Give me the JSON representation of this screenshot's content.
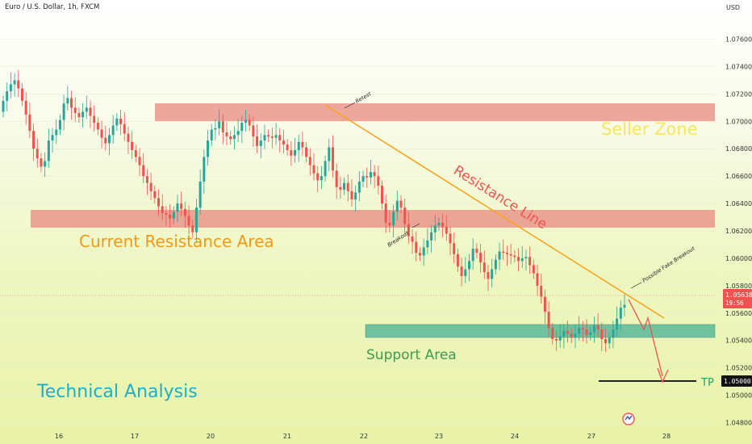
{
  "header": {
    "symbol": "Euro / U.S. Dollar, 1h, FXCM",
    "currency": "USD"
  },
  "chart_data": {
    "type": "candlestick",
    "x_ticks": [
      "16",
      "17",
      "20",
      "21",
      "22",
      "23",
      "24",
      "27",
      "28"
    ],
    "y_ticks": [
      "1.07600",
      "1.07400",
      "1.07200",
      "1.07000",
      "1.06800",
      "1.06600",
      "1.06400",
      "1.06200",
      "1.06000",
      "1.05800",
      "1.05600",
      "1.05400",
      "1.05200",
      "1.05000",
      "1.04800"
    ],
    "ylim": [
      1.0475,
      1.0778
    ],
    "current_price": {
      "value": "1.05638",
      "countdown": "19:56",
      "level": 1.05638
    },
    "tp_price": {
      "value": "1.05000",
      "level": 1.05
    },
    "closes": [
      1.0715,
      1.0722,
      1.0727,
      1.073,
      1.0724,
      1.0715,
      1.0705,
      1.0693,
      1.068,
      1.0673,
      1.0667,
      1.0671,
      1.0686,
      1.069,
      1.0694,
      1.0701,
      1.0713,
      1.0717,
      1.071,
      1.0706,
      1.0703,
      1.0707,
      1.071,
      1.0704,
      1.0699,
      1.0694,
      1.0688,
      1.0684,
      1.069,
      1.0697,
      1.0702,
      1.0698,
      1.0691,
      1.0685,
      1.0679,
      1.0674,
      1.0668,
      1.066,
      1.0655,
      1.0649,
      1.0644,
      1.0638,
      1.0633,
      1.0632,
      1.0629,
      1.0634,
      1.064,
      1.0636,
      1.0631,
      1.0624,
      1.0619,
      1.0637,
      1.0656,
      1.0674,
      1.0686,
      1.0694,
      1.0695,
      1.07,
      1.0692,
      1.0689,
      1.0687,
      1.069,
      1.0693,
      1.0699,
      1.0701,
      1.0697,
      1.0689,
      1.0682,
      1.0686,
      1.069,
      1.0689,
      1.0688,
      1.069,
      1.0686,
      1.0683,
      1.0679,
      1.0675,
      1.0679,
      1.0685,
      1.0681,
      1.0674,
      1.0668,
      1.0662,
      1.0657,
      1.066,
      1.0671,
      1.0681,
      1.0664,
      1.0652,
      1.065,
      1.0655,
      1.0649,
      1.0643,
      1.0648,
      1.0656,
      1.066,
      1.0659,
      1.0663,
      1.066,
      1.0653,
      1.064,
      1.0626,
      1.0624,
      1.0634,
      1.0642,
      1.0637,
      1.0625,
      1.0616,
      1.0612,
      1.0604,
      1.0602,
      1.0608,
      1.0613,
      1.0619,
      1.0624,
      1.0626,
      1.0623,
      1.0618,
      1.0611,
      1.0603,
      1.0594,
      1.0587,
      1.0592,
      1.0598,
      1.0607,
      1.0604,
      1.0597,
      1.059,
      1.0585,
      1.0592,
      1.0599,
      1.0605,
      1.0604,
      1.0603,
      1.0602,
      1.0601,
      1.0598,
      1.06,
      1.0601,
      1.0595,
      1.0589,
      1.058,
      1.0572,
      1.0561,
      1.0549,
      1.0541,
      1.054,
      1.0543,
      1.0547,
      1.0545,
      1.0542,
      1.0545,
      1.0549,
      1.0548,
      1.0544,
      1.0546,
      1.0551,
      1.0548,
      1.0541,
      1.0538,
      1.0542,
      1.0548,
      1.0556,
      1.0564,
      1.0566
    ]
  },
  "annotations": {
    "seller_zone": "Seller Zone",
    "resistance_line": "Resistance Line",
    "current_resistance": "Current Resistance Area",
    "support_area": "Support Area",
    "technical_analysis": "Technical Analysis",
    "tp": "TP",
    "retest": "Retest",
    "breakout": "Breakout",
    "fake_breakout": "Possible Fake Breakout"
  },
  "colors": {
    "bull": "#26a69a",
    "bear": "#ef5350",
    "resistance_zone": "#e88a80",
    "support_zone": "#5bb89a",
    "trend_line": "#f5a623",
    "projection": "#ef5350"
  }
}
